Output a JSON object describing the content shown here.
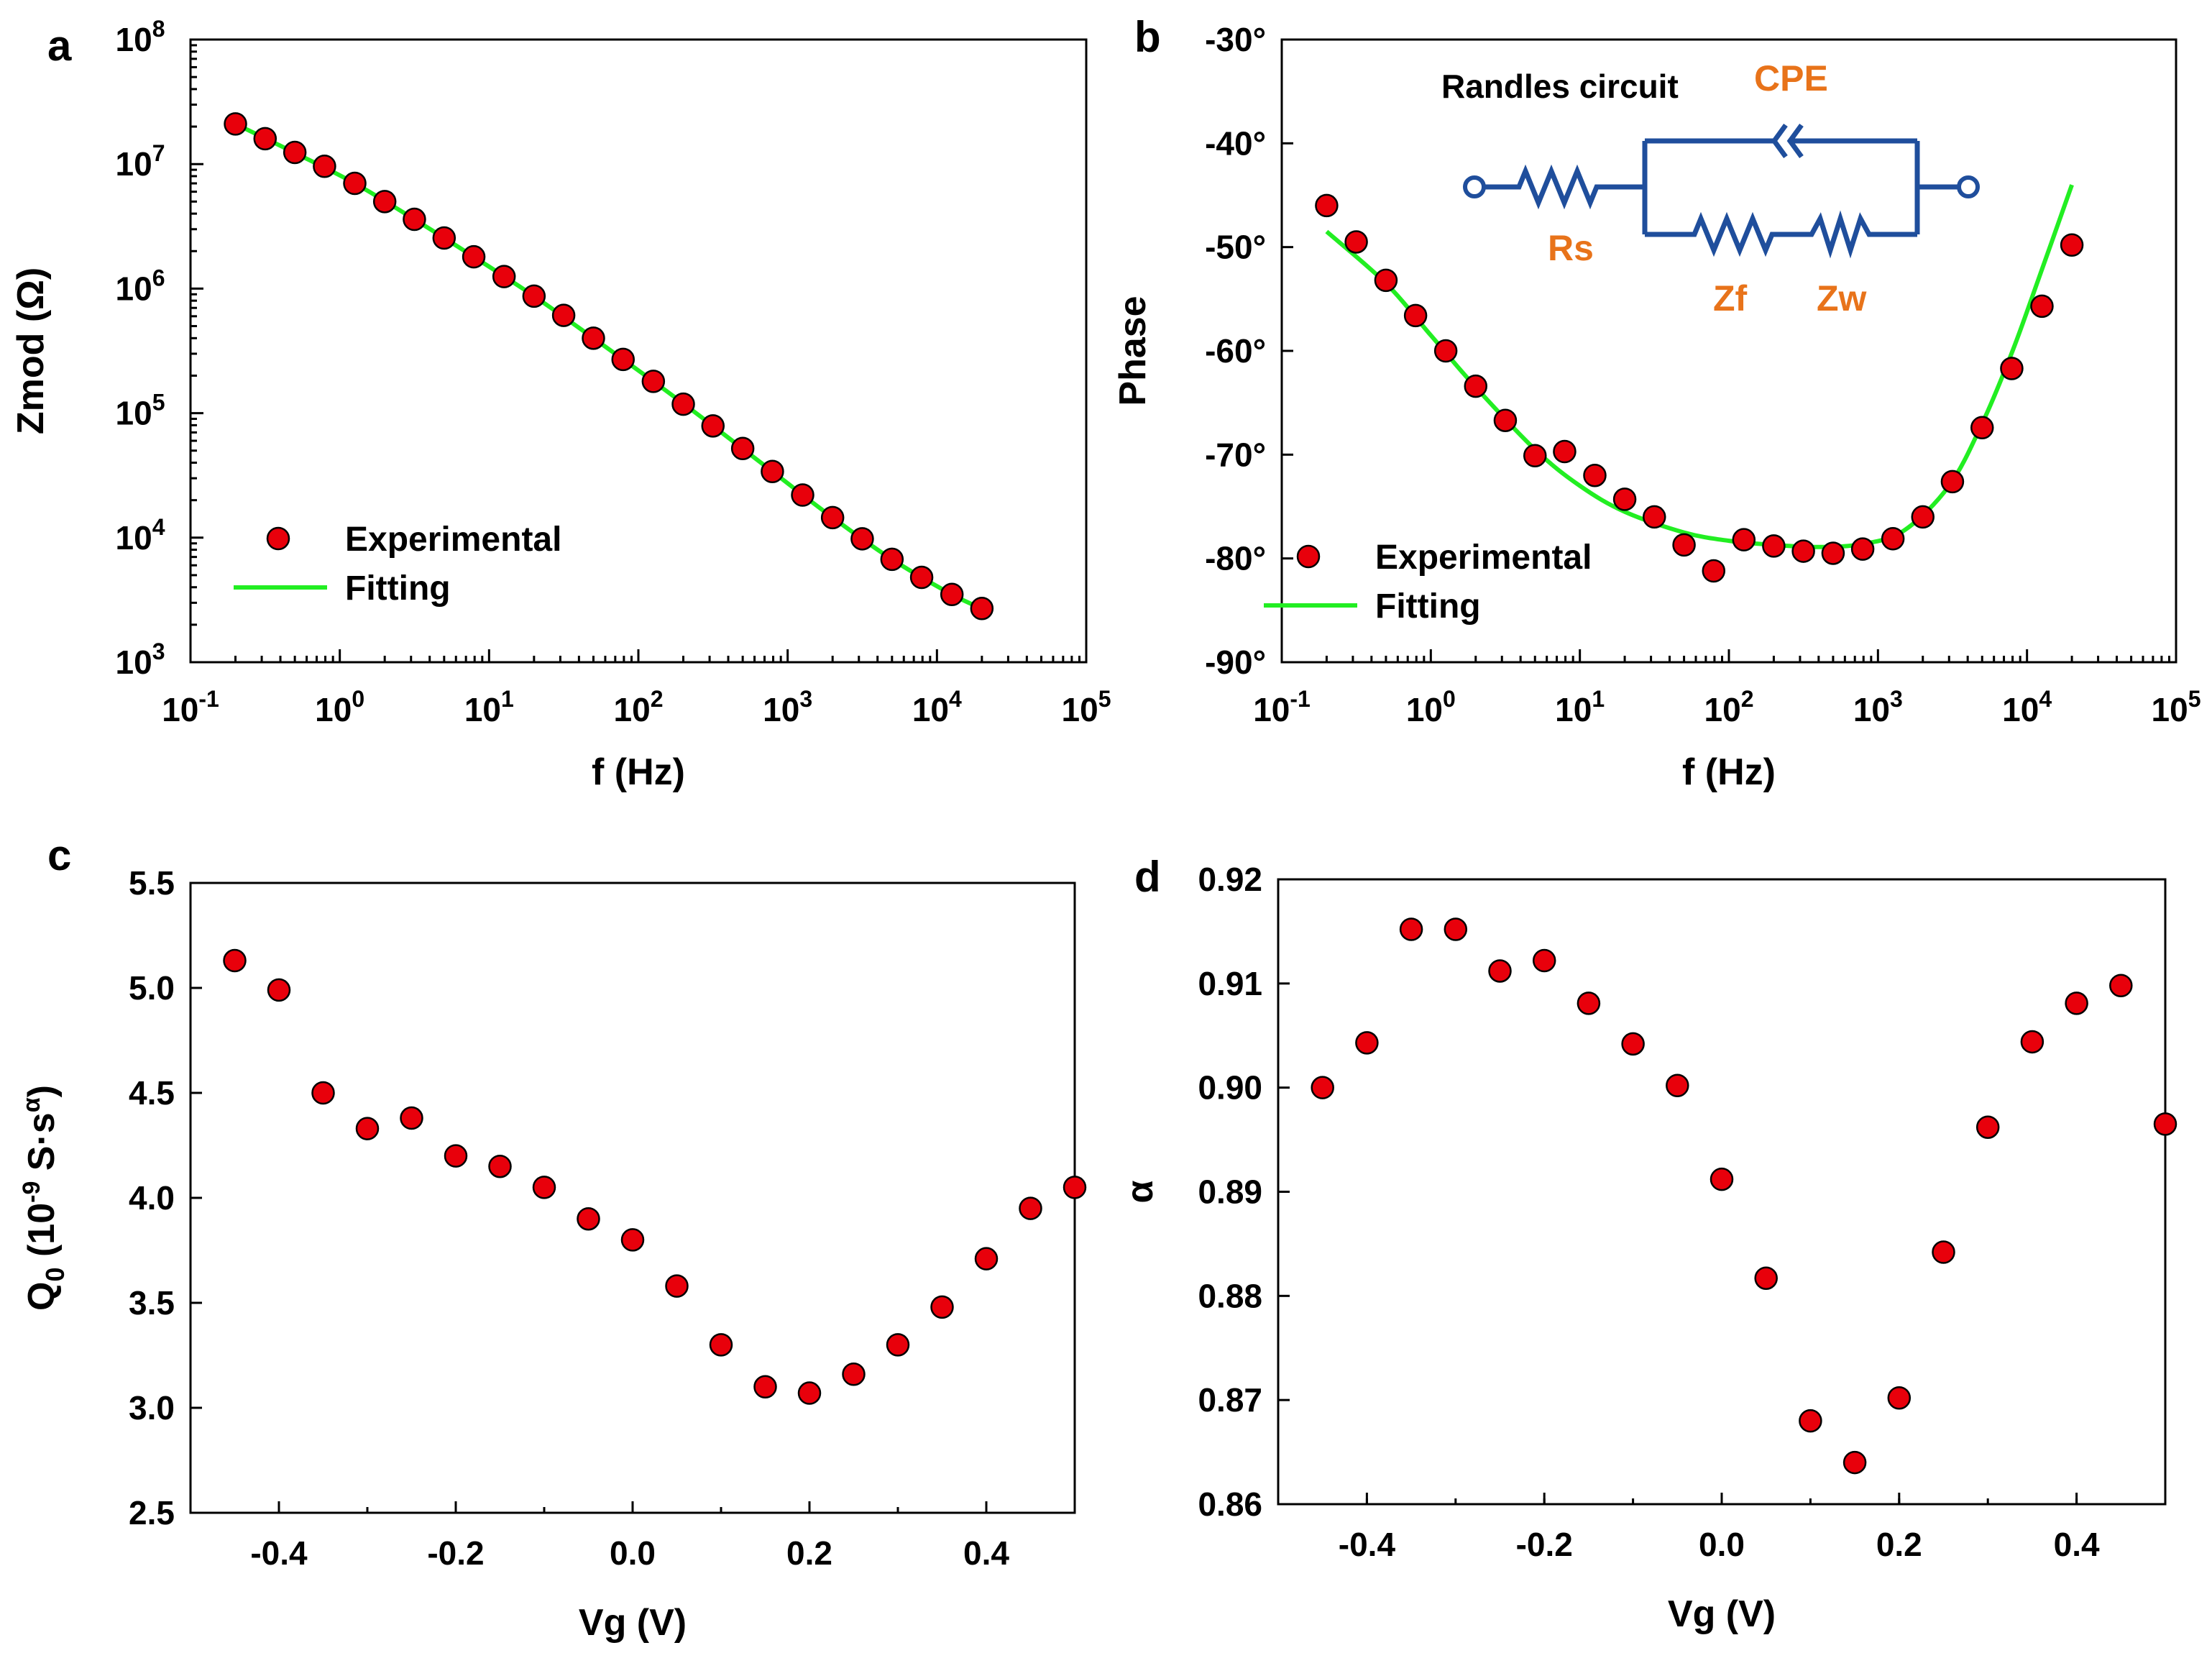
{
  "panels": [
    {
      "letter": "a"
    },
    {
      "letter": "b"
    },
    {
      "letter": "c"
    },
    {
      "letter": "d"
    }
  ],
  "chart_data": [
    {
      "type": "line",
      "panel": "a",
      "xlabel": "f (Hz)",
      "ylabel": "Zmod (Ω)",
      "xscale": "log",
      "yscale": "log",
      "xlim": [
        0.1,
        100000
      ],
      "ylim": [
        1000,
        100000000
      ],
      "xticks": [
        {
          "base": "10",
          "exp": "-1"
        },
        {
          "base": "10",
          "exp": "0"
        },
        {
          "base": "10",
          "exp": "1"
        },
        {
          "base": "10",
          "exp": "2"
        },
        {
          "base": "10",
          "exp": "3"
        },
        {
          "base": "10",
          "exp": "4"
        },
        {
          "base": "10",
          "exp": "5"
        }
      ],
      "yticks": [
        {
          "base": "10",
          "exp": "3"
        },
        {
          "base": "10",
          "exp": "4"
        },
        {
          "base": "10",
          "exp": "5"
        },
        {
          "base": "10",
          "exp": "6"
        },
        {
          "base": "10",
          "exp": "7"
        },
        {
          "base": "10",
          "exp": "8"
        }
      ],
      "legend": {
        "position": "bottom-left",
        "entries": [
          "Experimental",
          "Fitting"
        ]
      },
      "series": [
        {
          "name": "Experimental",
          "kind": "scatter",
          "color": "#e8000b",
          "x": [
            0.2,
            0.316,
            0.5,
            0.79,
            1.26,
            2,
            3.16,
            5,
            7.9,
            12.6,
            20,
            31.6,
            50,
            79,
            126,
            200,
            316,
            500,
            790,
            1260,
            2000,
            3160,
            5000,
            7900,
            12600,
            20000
          ],
          "y": [
            21000000,
            16000000,
            12400000,
            9600000,
            7000000,
            5000000,
            3600000,
            2550000,
            1800000,
            1250000,
            870000,
            610000,
            400000,
            270000,
            180000,
            118000,
            79000,
            52000,
            34000,
            22000,
            14500,
            9800,
            6700,
            4800,
            3500,
            2700
          ]
        },
        {
          "name": "Fitting",
          "kind": "line",
          "color": "#22ee22",
          "x": [
            0.2,
            0.5,
            1.26,
            3.16,
            7.9,
            20,
            50,
            126,
            316,
            790,
            2000,
            5000,
            12600,
            20000
          ],
          "y": [
            21000000,
            12300000,
            7000000,
            3600000,
            1800000,
            870000,
            400000,
            180000,
            79000,
            34000,
            14500,
            6700,
            3500,
            2700
          ]
        }
      ]
    },
    {
      "type": "line",
      "panel": "b",
      "xlabel": "f (Hz)",
      "ylabel": "Phase",
      "xscale": "log",
      "xlim": [
        0.1,
        100000
      ],
      "ylim": [
        -90,
        -30
      ],
      "xticks": [
        {
          "base": "10",
          "exp": "-1"
        },
        {
          "base": "10",
          "exp": "0"
        },
        {
          "base": "10",
          "exp": "1"
        },
        {
          "base": "10",
          "exp": "2"
        },
        {
          "base": "10",
          "exp": "3"
        },
        {
          "base": "10",
          "exp": "4"
        },
        {
          "base": "10",
          "exp": "5"
        }
      ],
      "yticks": [
        "-30°",
        "-40°",
        "-50°",
        "-60°",
        "-70°",
        "-80°",
        "-90°"
      ],
      "ytick_values": [
        -30,
        -40,
        -50,
        -60,
        -70,
        -80,
        -90
      ],
      "legend": {
        "position": "bottom-left",
        "entries": [
          "Experimental",
          "Fitting"
        ]
      },
      "series": [
        {
          "name": "Experimental",
          "kind": "scatter",
          "color": "#e8000b",
          "x": [
            0.2,
            0.316,
            0.5,
            0.79,
            1.26,
            2,
            3.16,
            5,
            7.9,
            12.6,
            20,
            31.6,
            50,
            79,
            126,
            200,
            316,
            500,
            790,
            1260,
            2000,
            3160,
            5000,
            7900,
            12600,
            20000
          ],
          "y": [
            -46,
            -49.5,
            -53.2,
            -56.6,
            -60,
            -63.4,
            -66.7,
            -70.1,
            -69.7,
            -72,
            -74.3,
            -76,
            -78.7,
            -81.2,
            -78.2,
            -78.8,
            -79.3,
            -79.5,
            -79.1,
            -78.1,
            -76,
            -72.6,
            -67.4,
            -61.7,
            -55.7,
            -49.8
          ]
        },
        {
          "name": "Fitting",
          "kind": "line",
          "color": "#22ee22",
          "x": [
            0.2,
            0.5,
            1,
            2,
            5,
            10,
            20,
            50,
            100,
            200,
            400,
            800,
            1500,
            3000,
            5000,
            8000,
            12000,
            20000
          ],
          "y": [
            -48.5,
            -53.5,
            -58.5,
            -63.5,
            -69.5,
            -73,
            -75.5,
            -77.5,
            -78.3,
            -78.7,
            -78.9,
            -78.6,
            -77.3,
            -73,
            -67,
            -60,
            -53,
            -44
          ]
        }
      ],
      "inset": {
        "title": "Randles circuit",
        "components": [
          "CPE",
          "Rs",
          "Zf",
          "Zw"
        ]
      }
    },
    {
      "type": "scatter",
      "panel": "c",
      "xlabel": "Vg (V)",
      "ylabel_base": "Q",
      "ylabel_sub": "0",
      "ylabel_mid": " (10",
      "ylabel_sup1": "-9",
      "ylabel_mid2": " S·s",
      "ylabel_sup2": "α",
      "ylabel_end": ")",
      "xlim": [
        -0.5,
        0.5
      ],
      "ylim": [
        2.5,
        5.5
      ],
      "xticks": [
        "-0.4",
        "-0.2",
        "0.0",
        "0.2",
        "0.4"
      ],
      "xtick_values": [
        -0.4,
        -0.2,
        0.0,
        0.2,
        0.4
      ],
      "yticks": [
        "2.5",
        "3.0",
        "3.5",
        "4.0",
        "4.5",
        "5.0",
        "5.5"
      ],
      "ytick_values": [
        2.5,
        3.0,
        3.5,
        4.0,
        4.5,
        5.0,
        5.5
      ],
      "series": [
        {
          "name": "Q0",
          "color": "#e8000b",
          "x": [
            -0.45,
            -0.4,
            -0.35,
            -0.3,
            -0.25,
            -0.2,
            -0.15,
            -0.1,
            -0.05,
            0.0,
            0.05,
            0.1,
            0.15,
            0.2,
            0.25,
            0.3,
            0.35,
            0.4,
            0.45,
            0.5
          ],
          "y": [
            5.13,
            4.99,
            4.5,
            4.33,
            4.38,
            4.2,
            4.15,
            4.05,
            3.9,
            3.8,
            3.58,
            3.3,
            3.1,
            3.07,
            3.16,
            3.3,
            3.48,
            3.71,
            3.95,
            4.05
          ]
        }
      ]
    },
    {
      "type": "scatter",
      "panel": "d",
      "xlabel": "Vg (V)",
      "ylabel": "α",
      "xlim": [
        -0.5,
        0.5
      ],
      "ylim": [
        0.86,
        0.92
      ],
      "xticks": [
        "-0.4",
        "-0.2",
        "0.0",
        "0.2",
        "0.4"
      ],
      "xtick_values": [
        -0.4,
        -0.2,
        0.0,
        0.2,
        0.4
      ],
      "yticks": [
        "0.86",
        "0.87",
        "0.88",
        "0.89",
        "0.90",
        "0.91",
        "0.92"
      ],
      "ytick_values": [
        0.86,
        0.87,
        0.88,
        0.89,
        0.9,
        0.91,
        0.92
      ],
      "series": [
        {
          "name": "alpha",
          "color": "#e8000b",
          "x": [
            -0.45,
            -0.4,
            -0.35,
            -0.3,
            -0.25,
            -0.2,
            -0.15,
            -0.1,
            -0.05,
            0.0,
            0.05,
            0.1,
            0.15,
            0.2,
            0.25,
            0.3,
            0.35,
            0.4,
            0.45,
            0.5
          ],
          "y": [
            0.9,
            0.9043,
            0.9152,
            0.9152,
            0.9112,
            0.9122,
            0.9081,
            0.9042,
            0.9002,
            0.8912,
            0.8817,
            0.868,
            0.864,
            0.8702,
            0.8842,
            0.8962,
            0.9044,
            0.9081,
            0.9098,
            0.8965
          ]
        }
      ]
    }
  ]
}
